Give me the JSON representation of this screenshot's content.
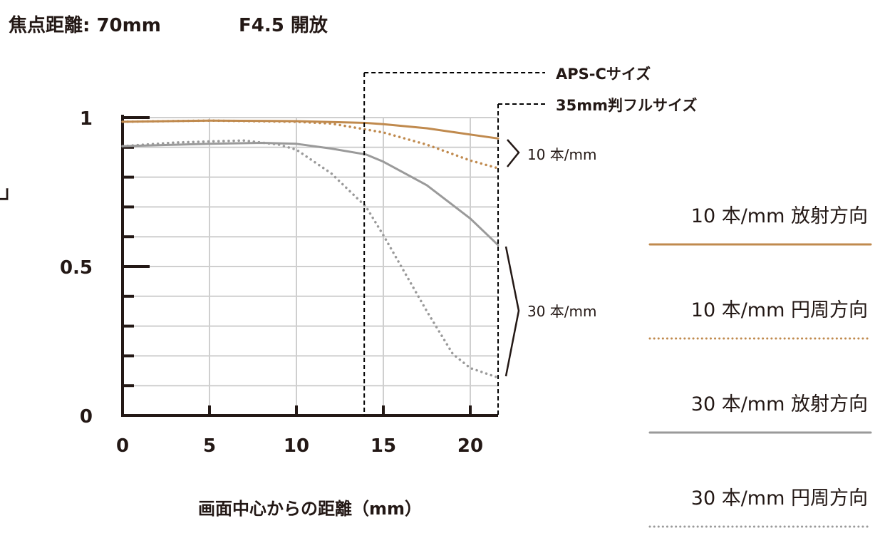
{
  "header": {
    "focal_length": "焦点距離: 70mm",
    "aperture": "F4.5 開放"
  },
  "chart_data": {
    "type": "line",
    "xlabel": "画面中心からの距離（mm）",
    "ylabel": "コントラスト値",
    "xlim": [
      0,
      21.6
    ],
    "ylim": [
      0,
      1
    ],
    "x_ticks": [
      "0",
      "5",
      "10",
      "15",
      "20"
    ],
    "y_ticks": [
      "0",
      "0.5",
      "1"
    ],
    "grid": true,
    "markers": [
      {
        "label": "APS-Cサイズ",
        "x": 13.9
      },
      {
        "label": "35mm判フルサイズ",
        "x": 21.6
      }
    ],
    "group_labels": [
      "10 本/mm",
      "30 本/mm"
    ],
    "series": [
      {
        "name": "10 本/mm 放射方向",
        "color": "#c08a4e",
        "dash": "solid",
        "x": [
          0,
          5,
          10,
          14,
          15,
          17.5,
          20,
          21.6
        ],
        "y": [
          0.986,
          0.99,
          0.988,
          0.982,
          0.978,
          0.964,
          0.943,
          0.93
        ]
      },
      {
        "name": "10 本/mm 円周方向",
        "color": "#c08a4e",
        "dash": "dotted",
        "x": [
          0,
          5,
          10,
          12,
          14,
          15,
          17.5,
          20,
          21.6
        ],
        "y": [
          0.986,
          0.99,
          0.986,
          0.98,
          0.96,
          0.95,
          0.909,
          0.856,
          0.83
        ]
      },
      {
        "name": "30 本/mm 放射方向",
        "color": "#9a9a9a",
        "dash": "solid",
        "x": [
          0,
          5,
          8,
          10,
          12,
          14,
          15,
          17.5,
          20,
          21.6
        ],
        "y": [
          0.904,
          0.912,
          0.915,
          0.912,
          0.896,
          0.876,
          0.852,
          0.773,
          0.661,
          0.572
        ]
      },
      {
        "name": "30 本/mm 円周方向",
        "color": "#9a9a9a",
        "dash": "dotted",
        "x": [
          0,
          3,
          5,
          7,
          9,
          10,
          12,
          14,
          15,
          17.5,
          19,
          20,
          21.6
        ],
        "y": [
          0.904,
          0.916,
          0.92,
          0.923,
          0.909,
          0.892,
          0.813,
          0.701,
          0.605,
          0.35,
          0.206,
          0.159,
          0.127
        ]
      }
    ]
  }
}
